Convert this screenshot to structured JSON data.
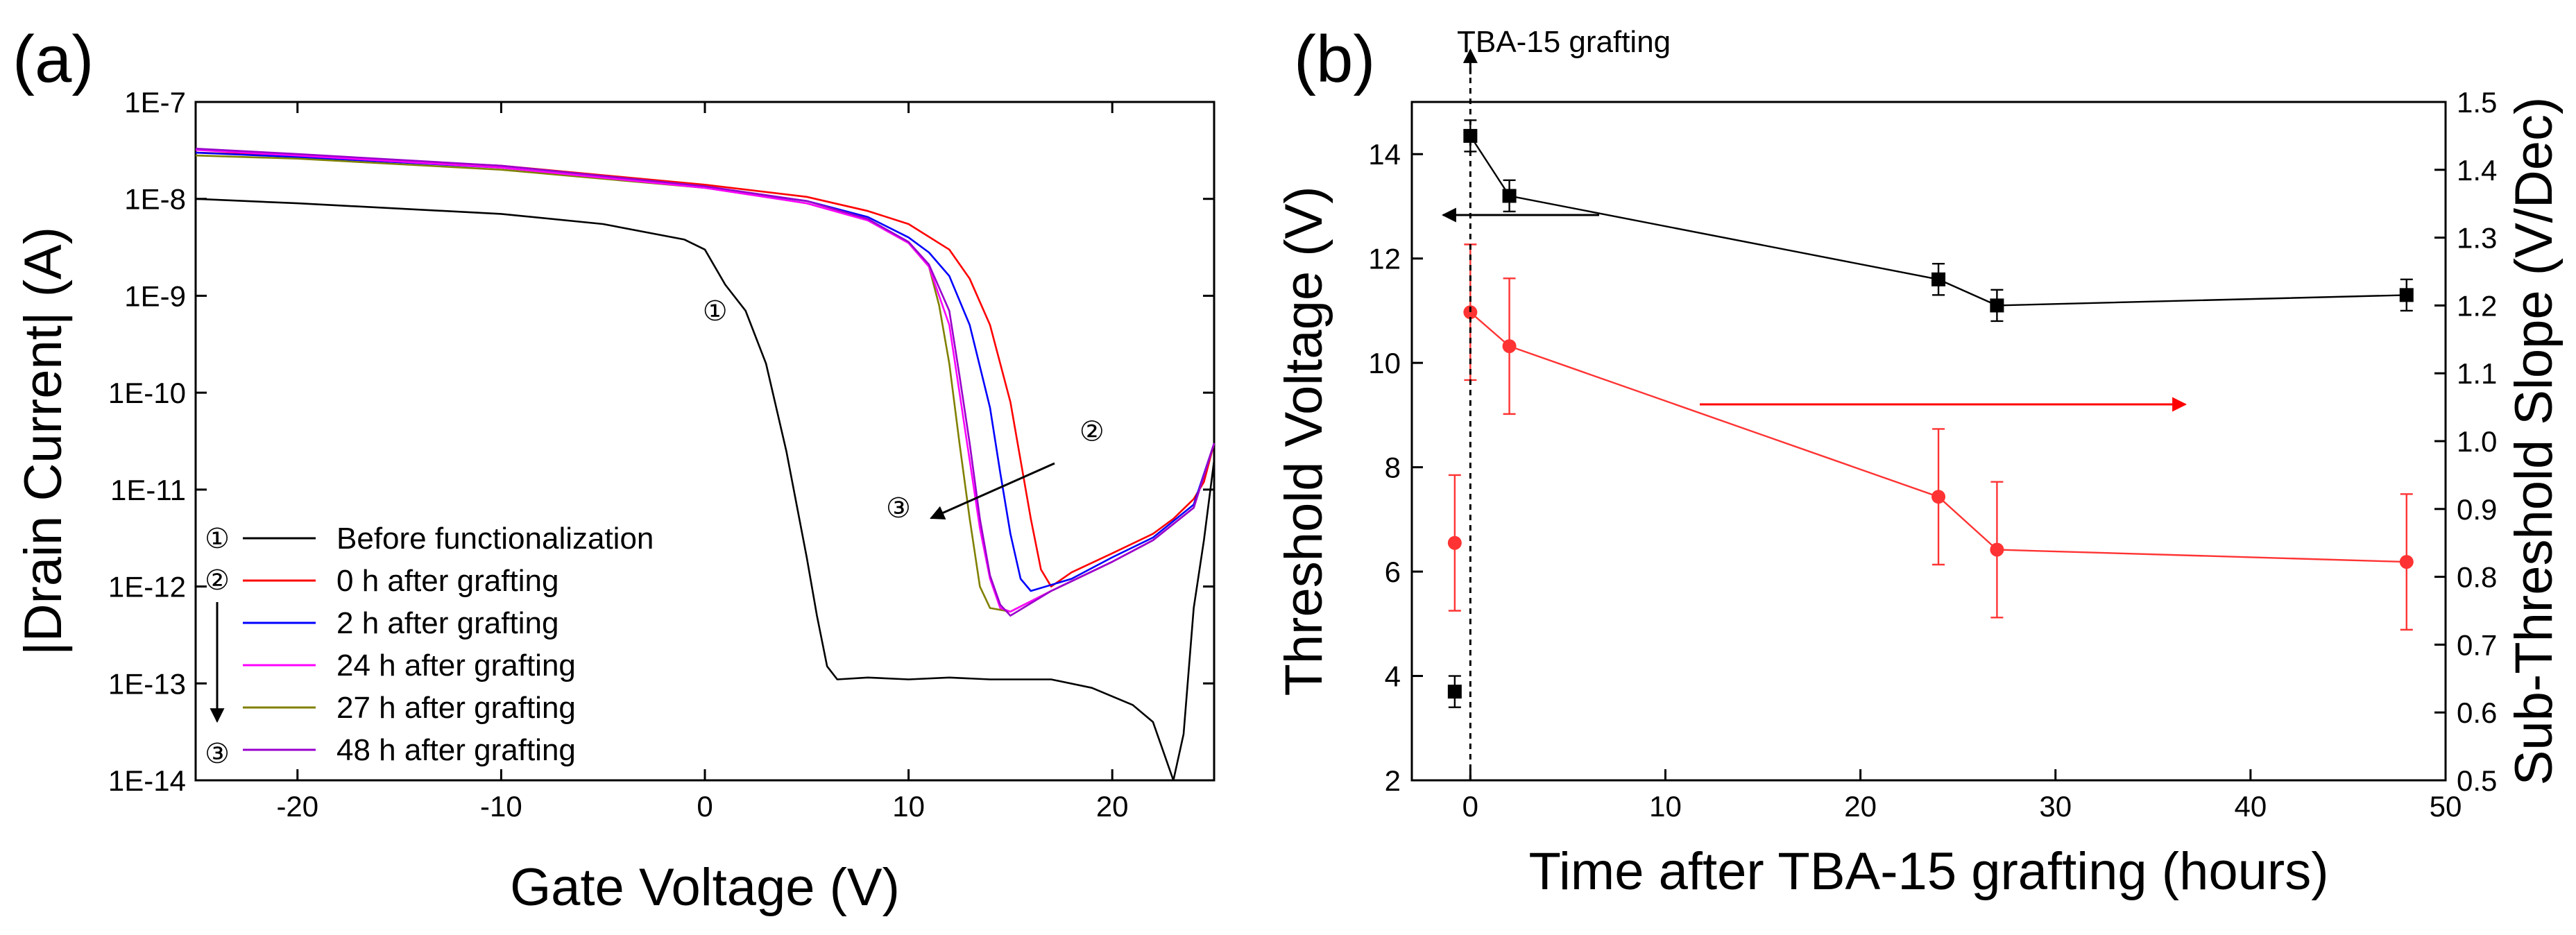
{
  "chart_data": [
    {
      "panel": "(a)",
      "type": "line",
      "xlabel": "Gate Voltage (V)",
      "ylabel": "|Drain Current| (A)",
      "xlim": [
        -25,
        25
      ],
      "ylim": [
        1e-14,
        1e-07
      ],
      "yscale": "log",
      "x_ticks": [
        -20,
        -10,
        0,
        10,
        20
      ],
      "x_tick_labels": [
        "-20",
        "-10",
        "0",
        "10",
        "20"
      ],
      "y_ticks": [
        1e-14,
        1e-13,
        1e-12,
        1e-11,
        1e-10,
        1e-09,
        1e-08,
        1e-07
      ],
      "y_tick_labels": [
        "1E-14",
        "1E-13",
        "1E-12",
        "1E-11",
        "1E-10",
        "1E-9",
        "1E-8",
        "1E-7"
      ],
      "legend_position": "bottom-left",
      "series": [
        {
          "name": "Before functionalization",
          "marker": "①",
          "color": "#000000",
          "points": [
            [
              -25,
              1e-08
            ],
            [
              -20,
              9e-09
            ],
            [
              -10,
              7e-09
            ],
            [
              -5,
              5.5e-09
            ],
            [
              -1,
              3.8e-09
            ],
            [
              0,
              3e-09
            ],
            [
              1,
              1.3e-09
            ],
            [
              2,
              7e-10
            ],
            [
              3,
              2e-10
            ],
            [
              4,
              2.5e-11
            ],
            [
              5,
              2e-12
            ],
            [
              5.5,
              5e-13
            ],
            [
              6,
              1.5e-13
            ],
            [
              6.5,
              1.1e-13
            ],
            [
              8,
              1.15e-13
            ],
            [
              10,
              1.1e-13
            ],
            [
              12,
              1.15e-13
            ],
            [
              14,
              1.1e-13
            ],
            [
              17,
              1.1e-13
            ],
            [
              19,
              9e-14
            ],
            [
              21,
              6e-14
            ],
            [
              22,
              4e-14
            ],
            [
              22.5,
              2e-14
            ],
            [
              23,
              1e-14
            ],
            [
              23.5,
              3e-14
            ],
            [
              24,
              6e-13
            ],
            [
              24.5,
              3e-12
            ],
            [
              25,
              2e-11
            ]
          ]
        },
        {
          "name": "0 h after grafting",
          "color": "#ff0000",
          "points": [
            [
              -25,
              3e-08
            ],
            [
              -20,
              2.8e-08
            ],
            [
              -10,
              2.2e-08
            ],
            [
              0,
              1.4e-08
            ],
            [
              5,
              1.05e-08
            ],
            [
              8,
              7.5e-09
            ],
            [
              10,
              5.5e-09
            ],
            [
              12,
              3e-09
            ],
            [
              13,
              1.5e-09
            ],
            [
              14,
              5e-10
            ],
            [
              15,
              8e-11
            ],
            [
              15.5,
              2e-11
            ],
            [
              16,
              5e-12
            ],
            [
              16.5,
              1.5e-12
            ],
            [
              17,
              1e-12
            ],
            [
              18,
              1.4e-12
            ],
            [
              20,
              2.2e-12
            ],
            [
              22,
              3.5e-12
            ],
            [
              23,
              5e-12
            ],
            [
              24,
              8e-12
            ],
            [
              24.5,
              1.2e-11
            ],
            [
              25,
              3e-11
            ]
          ]
        },
        {
          "name": "2 h after grafting",
          "color": "#0000ff",
          "points": [
            [
              -25,
              3e-08
            ],
            [
              -20,
              2.7e-08
            ],
            [
              -10,
              2.1e-08
            ],
            [
              0,
              1.3e-08
            ],
            [
              5,
              9.5e-09
            ],
            [
              8,
              6.5e-09
            ],
            [
              10,
              4e-09
            ],
            [
              11,
              2.8e-09
            ],
            [
              12,
              1.6e-09
            ],
            [
              13,
              5e-10
            ],
            [
              14,
              7e-11
            ],
            [
              14.5,
              1.5e-11
            ],
            [
              15,
              3.5e-12
            ],
            [
              15.5,
              1.2e-12
            ],
            [
              16,
              9e-13
            ],
            [
              18,
              1.2e-12
            ],
            [
              20,
              2e-12
            ],
            [
              22,
              3.2e-12
            ],
            [
              24,
              7e-12
            ],
            [
              25,
              3e-11
            ]
          ]
        },
        {
          "name": "24 h after grafting",
          "color": "#ff00ff",
          "points": [
            [
              -25,
              3.2e-08
            ],
            [
              -20,
              2.8e-08
            ],
            [
              -10,
              2.1e-08
            ],
            [
              0,
              1.3e-08
            ],
            [
              5,
              9e-09
            ],
            [
              8,
              6e-09
            ],
            [
              10,
              3.5e-09
            ],
            [
              11,
              2e-09
            ],
            [
              12,
              5e-10
            ],
            [
              12.5,
              1e-10
            ],
            [
              13,
              2e-11
            ],
            [
              13.5,
              4e-12
            ],
            [
              14,
              1.2e-12
            ],
            [
              14.5,
              6e-13
            ],
            [
              15,
              5.5e-13
            ],
            [
              17,
              9e-13
            ],
            [
              20,
              1.8e-12
            ],
            [
              22,
              3e-12
            ],
            [
              24,
              6.5e-12
            ],
            [
              25,
              3e-11
            ]
          ]
        },
        {
          "name": "27 h after grafting",
          "color": "#808000",
          "points": [
            [
              -25,
              2.8e-08
            ],
            [
              -20,
              2.6e-08
            ],
            [
              -10,
              2e-08
            ],
            [
              0,
              1.3e-08
            ],
            [
              5,
              9e-09
            ],
            [
              8,
              6e-09
            ],
            [
              10,
              3.5e-09
            ],
            [
              11,
              2e-09
            ],
            [
              11.5,
              8e-10
            ],
            [
              12,
              2e-10
            ],
            [
              12.5,
              3e-11
            ],
            [
              13,
              5e-12
            ],
            [
              13.5,
              1e-12
            ],
            [
              14,
              6e-13
            ],
            [
              15,
              5.5e-13
            ],
            [
              17,
              9e-13
            ],
            [
              20,
              1.8e-12
            ],
            [
              22,
              3e-12
            ],
            [
              24,
              6.5e-12
            ],
            [
              25,
              3e-11
            ]
          ]
        },
        {
          "name": "48 h after grafting",
          "color": "#9900cc",
          "points": [
            [
              -25,
              3.3e-08
            ],
            [
              -20,
              2.9e-08
            ],
            [
              -10,
              2.2e-08
            ],
            [
              0,
              1.35e-08
            ],
            [
              5,
              9.5e-09
            ],
            [
              8,
              6.2e-09
            ],
            [
              10,
              3.6e-09
            ],
            [
              11,
              2.1e-09
            ],
            [
              12,
              7e-10
            ],
            [
              12.5,
              1.5e-10
            ],
            [
              13,
              3e-11
            ],
            [
              13.5,
              5e-12
            ],
            [
              14,
              1.3e-12
            ],
            [
              14.5,
              6.5e-13
            ],
            [
              15,
              5e-13
            ],
            [
              17,
              9e-13
            ],
            [
              20,
              1.8e-12
            ],
            [
              22,
              3e-12
            ],
            [
              24,
              6.5e-12
            ],
            [
              25,
              3e-11
            ]
          ]
        }
      ],
      "annotations": [
        {
          "text": "①",
          "x": 0.5,
          "y": 7e-10
        },
        {
          "text": "②",
          "x": 19.0,
          "y": 4e-11
        },
        {
          "text": "③",
          "x": 9.5,
          "y": 6.5e-12
        }
      ],
      "legend_markers": [
        "①",
        "②",
        "③"
      ]
    },
    {
      "panel": "(b)",
      "type": "scatter",
      "xlabel": "Time after TBA-15 grafting (hours)",
      "ylabel": "Threshold Voltage (V)",
      "ylabel_right": "Sub-Threshold Slope (V/Dec)",
      "xlim": [
        -3,
        50
      ],
      "ylim": [
        2,
        15
      ],
      "ylim_right": [
        0.5,
        1.5
      ],
      "x_ticks": [
        0,
        10,
        20,
        30,
        40,
        50
      ],
      "x_tick_labels": [
        "0",
        "10",
        "20",
        "30",
        "40",
        "50"
      ],
      "y_ticks": [
        2,
        4,
        6,
        8,
        10,
        12,
        14
      ],
      "y_tick_labels": [
        "2",
        "4",
        "6",
        "8",
        "10",
        "12",
        "14"
      ],
      "y_ticks_right": [
        0.5,
        0.6,
        0.7,
        0.8,
        0.9,
        1.0,
        1.1,
        1.2,
        1.3,
        1.4,
        1.5
      ],
      "y_tick_labels_right": [
        "0.5",
        "0.6",
        "0.7",
        "0.8",
        "0.9",
        "1.0",
        "1.1",
        "1.2",
        "1.3",
        "1.4",
        "1.5"
      ],
      "annotation": "TBA-15 grafting",
      "series": [
        {
          "name": "Threshold Voltage",
          "axis": "left",
          "color": "#000000",
          "marker": "square",
          "pre_point": {
            "x": -0.8,
            "y": 3.7,
            "err": 0.3
          },
          "x": [
            0,
            2,
            24,
            27,
            48
          ],
          "values": [
            14.35,
            13.2,
            11.6,
            11.1,
            11.3
          ],
          "errors": [
            0.3,
            0.3,
            0.3,
            0.3,
            0.3
          ]
        },
        {
          "name": "Sub-Threshold Slope",
          "axis": "right",
          "color": "#ff3333",
          "marker": "circle",
          "pre_point": {
            "x": -0.8,
            "y": 0.85,
            "err": 0.1
          },
          "x": [
            0,
            2,
            24,
            27,
            48
          ],
          "values": [
            1.19,
            1.14,
            0.918,
            0.84,
            0.822
          ],
          "errors": [
            0.1,
            0.1,
            0.1,
            0.1,
            0.1
          ]
        }
      ]
    }
  ]
}
